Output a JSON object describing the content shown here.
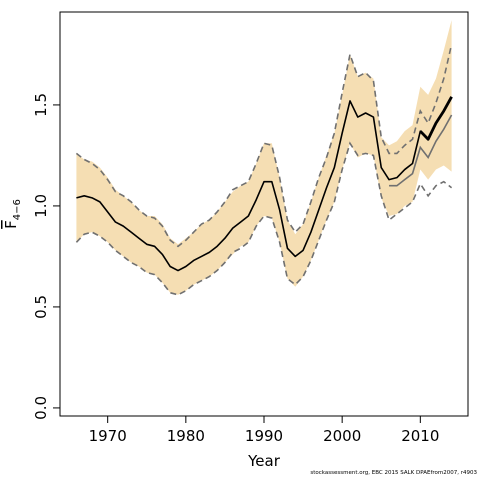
{
  "chart_data": {
    "type": "line",
    "xlabel": "Year",
    "ylabel": {
      "base": "F",
      "subscript": "4−6"
    },
    "xlim": [
      1963.9,
      2016.1
    ],
    "ylim": [
      -0.04,
      1.96
    ],
    "x_ticks": [
      1970,
      1980,
      1990,
      2000,
      2010
    ],
    "y_ticks": [
      0.0,
      0.5,
      1.0,
      1.5
    ],
    "y_tick_labels": [
      "0.0",
      "0.5",
      "1.0",
      "1.5"
    ],
    "grid": false,
    "legend": "none",
    "colors": {
      "band": "#f5deb3",
      "estimate": "#000000",
      "bounds": "#707070",
      "secondary": "#707070"
    },
    "years": [
      1966,
      1967,
      1968,
      1969,
      1970,
      1971,
      1972,
      1973,
      1974,
      1975,
      1976,
      1977,
      1978,
      1979,
      1980,
      1981,
      1982,
      1983,
      1984,
      1985,
      1986,
      1987,
      1988,
      1989,
      1990,
      1991,
      1992,
      1993,
      1994,
      1995,
      1996,
      1997,
      1998,
      1999,
      2000,
      2001,
      2002,
      2003,
      2004,
      2005,
      2006,
      2007,
      2008,
      2009,
      2010,
      2011,
      2012,
      2013,
      2014
    ],
    "series": [
      {
        "role": "band_upper",
        "values": [
          1.26,
          1.23,
          1.22,
          1.19,
          1.14,
          1.08,
          1.05,
          1.02,
          0.98,
          0.95,
          0.95,
          0.91,
          0.84,
          0.81,
          0.84,
          0.87,
          0.91,
          0.93,
          0.97,
          1.02,
          1.07,
          1.1,
          1.12,
          1.21,
          1.31,
          1.31,
          1.14,
          0.93,
          0.86,
          0.91,
          1.02,
          1.14,
          1.25,
          1.36,
          1.55,
          1.75,
          1.64,
          1.66,
          1.63,
          1.34,
          1.3,
          1.32,
          1.37,
          1.4,
          1.59,
          1.55,
          1.63,
          1.77,
          1.92
        ]
      },
      {
        "role": "band_lower",
        "values": [
          0.82,
          0.86,
          0.87,
          0.85,
          0.82,
          0.78,
          0.75,
          0.72,
          0.7,
          0.67,
          0.66,
          0.62,
          0.57,
          0.56,
          0.58,
          0.61,
          0.63,
          0.65,
          0.68,
          0.72,
          0.76,
          0.8,
          0.82,
          0.9,
          0.95,
          0.94,
          0.82,
          0.64,
          0.6,
          0.65,
          0.73,
          0.83,
          0.93,
          1.02,
          1.18,
          1.31,
          1.24,
          1.26,
          1.25,
          1.04,
          0.95,
          0.96,
          1.0,
          1.02,
          1.18,
          1.13,
          1.18,
          1.2,
          1.17
        ]
      },
      {
        "role": "upper_bound",
        "style": "dashed",
        "values": [
          1.26,
          1.23,
          1.21,
          1.18,
          1.13,
          1.07,
          1.05,
          1.02,
          0.98,
          0.95,
          0.94,
          0.9,
          0.83,
          0.8,
          0.83,
          0.87,
          0.91,
          0.93,
          0.97,
          1.02,
          1.08,
          1.1,
          1.12,
          1.21,
          1.31,
          1.3,
          1.14,
          0.93,
          0.87,
          0.91,
          1.02,
          1.14,
          1.24,
          1.36,
          1.56,
          1.75,
          1.64,
          1.66,
          1.62,
          1.34,
          1.26,
          1.26,
          1.3,
          1.33,
          1.47,
          1.41,
          1.51,
          1.63,
          1.8
        ]
      },
      {
        "role": "lower_bound",
        "style": "dashed",
        "values": [
          0.82,
          0.86,
          0.87,
          0.85,
          0.82,
          0.78,
          0.75,
          0.72,
          0.7,
          0.67,
          0.66,
          0.62,
          0.57,
          0.56,
          0.58,
          0.61,
          0.63,
          0.65,
          0.68,
          0.72,
          0.77,
          0.79,
          0.82,
          0.9,
          0.95,
          0.94,
          0.82,
          0.64,
          0.61,
          0.65,
          0.73,
          0.83,
          0.93,
          1.02,
          1.18,
          1.31,
          1.25,
          1.26,
          1.25,
          1.05,
          0.93,
          0.96,
          0.99,
          1.02,
          1.11,
          1.05,
          1.1,
          1.12,
          1.09
        ]
      },
      {
        "role": "secondary_estimate",
        "style": "solid",
        "values": [
          null,
          null,
          null,
          null,
          null,
          null,
          null,
          null,
          null,
          null,
          null,
          null,
          null,
          null,
          null,
          null,
          null,
          null,
          null,
          null,
          null,
          null,
          null,
          null,
          null,
          null,
          null,
          null,
          null,
          null,
          null,
          null,
          null,
          null,
          null,
          null,
          null,
          null,
          null,
          null,
          1.1,
          1.1,
          1.13,
          1.16,
          1.29,
          1.24,
          1.32,
          1.38,
          1.45
        ]
      },
      {
        "role": "estimate",
        "style": "solid",
        "values": [
          1.04,
          1.05,
          1.04,
          1.02,
          0.97,
          0.92,
          0.9,
          0.87,
          0.84,
          0.81,
          0.8,
          0.76,
          0.7,
          0.68,
          0.7,
          0.73,
          0.75,
          0.77,
          0.8,
          0.84,
          0.89,
          0.92,
          0.95,
          1.03,
          1.12,
          1.12,
          0.98,
          0.79,
          0.75,
          0.78,
          0.87,
          0.98,
          1.09,
          1.19,
          1.36,
          1.52,
          1.44,
          1.46,
          1.44,
          1.19,
          1.13,
          1.14,
          1.18,
          1.21,
          1.37,
          1.33,
          1.41,
          1.47,
          1.54
        ]
      }
    ]
  },
  "credit": "stockassessment.org,  EBC 2015 SALK DPAEfrom2007, r4903"
}
